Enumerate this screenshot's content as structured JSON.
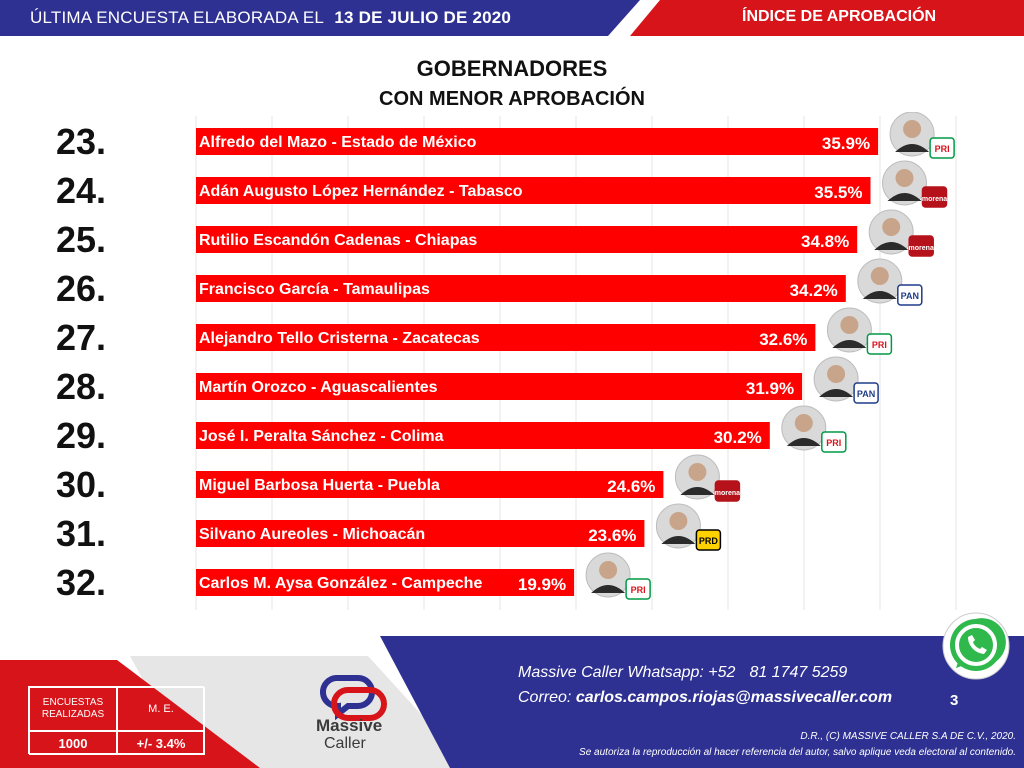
{
  "header": {
    "survey_label": "ÚLTIMA ENCUESTA ELABORADA EL",
    "survey_date": "13 DE JULIO DE 2020",
    "section": "ÍNDICE DE APROBACIÓN"
  },
  "chart_data": {
    "type": "bar",
    "orientation": "horizontal",
    "title": "GOBERNADORES",
    "subtitle": "CON MENOR APROBACIÓN",
    "xlim": [
      0,
      40
    ],
    "grid": true,
    "unit": "%",
    "color": "#ff0000",
    "ranks": [
      "23.",
      "24.",
      "25.",
      "26.",
      "27.",
      "28.",
      "29.",
      "30.",
      "31.",
      "32."
    ],
    "categories": [
      "Alfredo del Mazo - Estado de México",
      "Adán Augusto López Hernández - Tabasco",
      "Rutilio Escandón Cadenas - Chiapas",
      "Francisco García - Tamaulipas",
      "Alejandro Tello Cristerna - Zacatecas",
      "Martín Orozco - Aguascalientes",
      "José I. Peralta Sánchez - Colima",
      "Miguel Barbosa Huerta - Puebla",
      "Silvano Aureoles - Michoacán",
      "Carlos M. Aysa González - Campeche"
    ],
    "values": [
      35.9,
      35.5,
      34.8,
      34.2,
      32.6,
      31.9,
      30.2,
      24.6,
      23.6,
      19.9
    ],
    "value_labels": [
      "35.9%",
      "35.5%",
      "34.8%",
      "34.2%",
      "32.6%",
      "31.9%",
      "30.2%",
      "24.6%",
      "23.6%",
      "19.9%"
    ],
    "parties": [
      "PRI",
      "morena",
      "morena",
      "PAN",
      "PRI",
      "PAN",
      "PRI",
      "morena",
      "PRD",
      "PRI"
    ]
  },
  "footer": {
    "table_header_surveys": "ENCUESTAS REALIZADAS",
    "table_header_me": "M. E.",
    "table_surveys": "1000",
    "table_me": "+/- 3.4%",
    "logo_word1": "Massive",
    "logo_word2": "Caller",
    "whatsapp_label": "Massive Caller Whatsapp: +52",
    "whatsapp_number": "81 1747 5259",
    "email_label": "Correo:",
    "email": "carlos.campos.riojas@massivecaller.com",
    "page_number": "3",
    "legal1": "D.R., (C) MASSIVE CALLER S.A DE C.V., 2020.",
    "legal2": "Se autoriza la reproducción al hacer referencia del autor, salvo aplique veda electoral al contenido."
  }
}
